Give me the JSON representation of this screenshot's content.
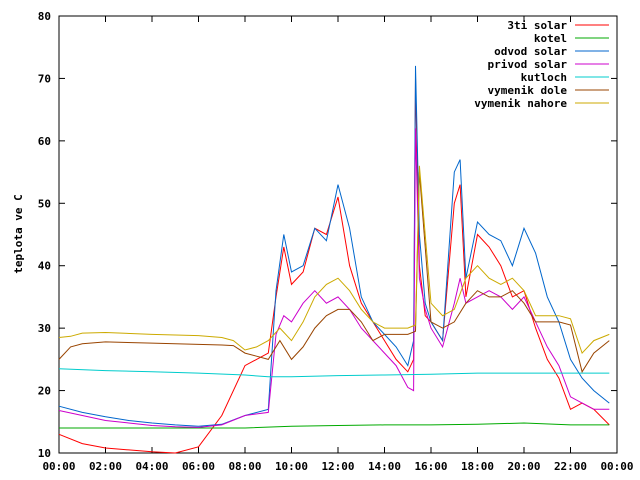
{
  "chart_data": {
    "type": "line",
    "title": "",
    "xlabel": "",
    "ylabel": "teplota ve C",
    "xlim": [
      "00:00",
      "24:00"
    ],
    "ylim": [
      10,
      80
    ],
    "x_ticks": [
      "00:00",
      "02:00",
      "04:00",
      "06:00",
      "08:00",
      "10:00",
      "12:00",
      "14:00",
      "16:00",
      "18:00",
      "20:00",
      "22:00",
      "00:00"
    ],
    "y_ticks": [
      10,
      20,
      30,
      40,
      50,
      60,
      70,
      80
    ],
    "grid": false,
    "legend_position": "top-right",
    "series": [
      {
        "name": "3ti solar",
        "color": "#ff0000",
        "x": [
          "00:00",
          "01:00",
          "02:00",
          "03:00",
          "04:00",
          "05:00",
          "06:00",
          "07:00",
          "08:00",
          "09:00",
          "09:20",
          "09:40",
          "10:00",
          "10:30",
          "11:00",
          "11:30",
          "12:00",
          "12:30",
          "13:00",
          "13:30",
          "14:00",
          "14:30",
          "15:00",
          "15:15",
          "15:20",
          "15:30",
          "15:45",
          "16:00",
          "16:30",
          "17:00",
          "17:15",
          "17:30",
          "18:00",
          "18:30",
          "19:00",
          "19:30",
          "20:00",
          "20:30",
          "21:00",
          "21:30",
          "22:00",
          "22:30",
          "23:00",
          "23:40"
        ],
        "values": [
          13,
          11.5,
          10.8,
          10.5,
          10.2,
          10,
          11,
          16,
          24,
          26,
          35,
          43,
          37,
          39,
          46,
          45,
          51,
          40,
          34,
          31,
          28,
          25,
          23,
          25,
          70,
          40,
          32,
          31,
          28,
          50,
          53,
          35,
          45,
          43,
          40,
          35,
          36,
          30,
          25,
          22,
          17,
          18,
          17,
          14.5
        ]
      },
      {
        "name": "kotel",
        "color": "#00aa00",
        "x": [
          "00:00",
          "02:00",
          "04:00",
          "06:00",
          "08:00",
          "10:00",
          "12:00",
          "14:00",
          "16:00",
          "18:00",
          "20:00",
          "22:00",
          "23:40"
        ],
        "values": [
          14,
          14,
          14,
          14,
          14,
          14.3,
          14.4,
          14.5,
          14.5,
          14.6,
          14.8,
          14.5,
          14.5
        ]
      },
      {
        "name": "odvod solar",
        "color": "#0066cc",
        "x": [
          "00:00",
          "01:00",
          "02:00",
          "03:00",
          "04:00",
          "05:00",
          "06:00",
          "07:00",
          "08:00",
          "09:00",
          "09:20",
          "09:40",
          "10:00",
          "10:30",
          "11:00",
          "11:30",
          "12:00",
          "12:30",
          "13:00",
          "13:30",
          "14:00",
          "14:30",
          "15:00",
          "15:15",
          "15:20",
          "15:30",
          "15:45",
          "16:00",
          "16:30",
          "17:00",
          "17:15",
          "17:30",
          "18:00",
          "18:30",
          "19:00",
          "19:30",
          "20:00",
          "20:30",
          "21:00",
          "21:30",
          "22:00",
          "22:30",
          "23:00",
          "23:40"
        ],
        "values": [
          17.5,
          16.5,
          15.8,
          15.2,
          14.8,
          14.5,
          14.3,
          14.6,
          16,
          17,
          36,
          45,
          39,
          40,
          46,
          44,
          53,
          46,
          35,
          31,
          29,
          27,
          24,
          28,
          72,
          45,
          34,
          31,
          28,
          55,
          57,
          38,
          47,
          45,
          44,
          40,
          46,
          42,
          35,
          31,
          25,
          22,
          20,
          18
        ]
      },
      {
        "name": "privod solar",
        "color": "#cc00cc",
        "x": [
          "00:00",
          "01:00",
          "02:00",
          "03:00",
          "04:00",
          "05:00",
          "06:00",
          "07:00",
          "08:00",
          "09:00",
          "09:20",
          "09:40",
          "10:00",
          "10:30",
          "11:00",
          "11:30",
          "12:00",
          "12:30",
          "13:00",
          "13:30",
          "14:00",
          "14:30",
          "15:00",
          "15:15",
          "15:20",
          "15:30",
          "15:45",
          "16:00",
          "16:30",
          "17:00",
          "17:15",
          "17:30",
          "18:00",
          "18:30",
          "19:00",
          "19:30",
          "20:00",
          "20:30",
          "21:00",
          "21:30",
          "22:00",
          "22:30",
          "23:00",
          "23:40"
        ],
        "values": [
          16.8,
          16,
          15.2,
          14.8,
          14.4,
          14.2,
          14.1,
          14.5,
          16,
          16.5,
          29,
          32,
          31,
          34,
          36,
          34,
          35,
          33,
          30,
          28,
          26,
          24,
          20.5,
          20,
          62,
          38,
          33,
          30,
          27,
          34,
          38,
          34,
          35,
          36,
          35,
          33,
          35,
          31,
          27,
          24,
          19,
          18,
          17,
          17
        ]
      },
      {
        "name": "kutloch",
        "color": "#00cccc",
        "x": [
          "00:00",
          "02:00",
          "04:00",
          "06:00",
          "08:00",
          "09:00",
          "10:00",
          "12:00",
          "14:00",
          "16:00",
          "18:00",
          "20:00",
          "22:00",
          "23:40"
        ],
        "values": [
          23.5,
          23.2,
          23,
          22.8,
          22.5,
          22.2,
          22.2,
          22.4,
          22.5,
          22.6,
          22.8,
          22.8,
          22.8,
          22.8
        ]
      },
      {
        "name": "vymenik dole",
        "color": "#994400",
        "x": [
          "00:00",
          "00:30",
          "01:00",
          "02:00",
          "04:00",
          "06:00",
          "07:00",
          "07:30",
          "08:00",
          "08:30",
          "09:00",
          "09:30",
          "10:00",
          "10:30",
          "11:00",
          "11:30",
          "12:00",
          "12:30",
          "13:00",
          "13:30",
          "14:00",
          "14:30",
          "15:00",
          "15:20",
          "15:30",
          "16:00",
          "16:30",
          "17:00",
          "17:30",
          "18:00",
          "18:30",
          "19:00",
          "19:30",
          "20:00",
          "20:30",
          "21:00",
          "21:30",
          "22:00",
          "22:30",
          "23:00",
          "23:40"
        ],
        "values": [
          25,
          27,
          27.5,
          27.8,
          27.6,
          27.4,
          27.3,
          27.2,
          26,
          25.5,
          25,
          28,
          25,
          27,
          30,
          32,
          33,
          33,
          31,
          28,
          29,
          29,
          29,
          29.5,
          55,
          31,
          30,
          31,
          34,
          36,
          35,
          35,
          36,
          34,
          31,
          31,
          31,
          30.5,
          23,
          26,
          28
        ]
      },
      {
        "name": "vymenik nahore",
        "color": "#ccaa00",
        "x": [
          "00:00",
          "00:30",
          "01:00",
          "02:00",
          "04:00",
          "06:00",
          "07:00",
          "07:30",
          "08:00",
          "08:30",
          "09:00",
          "09:30",
          "10:00",
          "10:30",
          "11:00",
          "11:30",
          "12:00",
          "12:30",
          "13:00",
          "13:30",
          "14:00",
          "14:30",
          "15:00",
          "15:20",
          "15:30",
          "16:00",
          "16:30",
          "17:00",
          "17:30",
          "18:00",
          "18:30",
          "19:00",
          "19:30",
          "20:00",
          "20:30",
          "21:00",
          "21:30",
          "22:00",
          "22:30",
          "23:00",
          "23:40"
        ],
        "values": [
          28.5,
          28.7,
          29.2,
          29.3,
          29.0,
          28.8,
          28.5,
          28.0,
          26.5,
          27.0,
          28,
          30,
          28,
          31,
          35,
          37,
          38,
          36,
          33,
          31,
          30,
          30,
          30,
          30.5,
          56,
          34,
          32,
          33,
          38,
          40,
          38,
          37,
          38,
          36,
          32,
          32,
          32,
          31.5,
          26,
          28,
          29
        ]
      }
    ]
  }
}
